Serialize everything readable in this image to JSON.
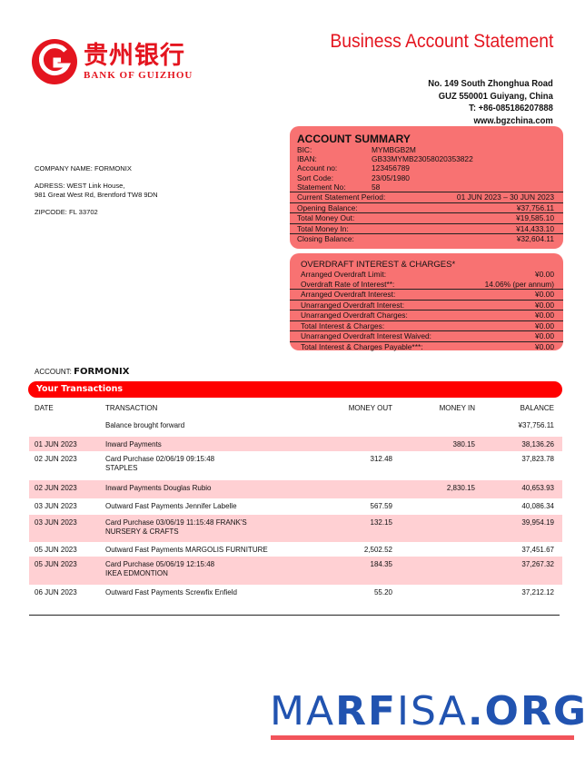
{
  "header": {
    "logo_cn": "贵州银行",
    "logo_en": "BANK OF GUIZHOU",
    "title": "Business Account Statement",
    "address": [
      "No. 149 South Zhonghua Road",
      "GUZ 550001 Guiyang, China",
      "T: +86-085186207888",
      "www.bgzchina.com"
    ]
  },
  "summary": {
    "title": "ACCOUNT SUMMARY",
    "details": [
      {
        "k": "BIC:",
        "v": "MYMBGB2M"
      },
      {
        "k": "IBAN:",
        "v": "GB33MYMB23058020353822"
      },
      {
        "k": "Account no:",
        "v": "123456789"
      },
      {
        "k": "Sort Code:",
        "v": "23/05/1980"
      },
      {
        "k": "Statement No:",
        "v": "58"
      }
    ],
    "lines": [
      {
        "k": "Current Statement Period:",
        "v": "01 JUN 2023 – 30 JUN 2023"
      },
      {
        "k": "Opening Balance:",
        "v": "¥37,756.11"
      },
      {
        "k": "Total Money Out:",
        "v": "¥19,585.10"
      },
      {
        "k": "Total Money In:",
        "v": "¥14,433.10"
      },
      {
        "k": "Closing Balance:",
        "v": "¥32,604.11"
      }
    ]
  },
  "overdraft": {
    "title": "OVERDRAFT INTEREST & CHARGES*",
    "top": [
      {
        "k": "Arranged Overdraft Limit:",
        "v": "¥0.00"
      },
      {
        "k": "Overdraft Rate of Interest**:",
        "v": "14.06% (per annum)"
      }
    ],
    "lines": [
      {
        "k": "Arranged Overdraft Interest:",
        "v": "¥0.00"
      },
      {
        "k": "Unarranged Overdraft Interest:",
        "v": "¥0.00"
      },
      {
        "k": "Unarranged Overdraft Charges:",
        "v": "¥0.00"
      },
      {
        "k": "Total Interest & Charges:",
        "v": "¥0.00"
      },
      {
        "k": "Unarranged Overdraft Interest Waived:",
        "v": "¥0.00"
      },
      {
        "k": "Total Interest & Charges Payable***:",
        "v": "¥0.00"
      }
    ]
  },
  "company": {
    "name": "COMPANY NAME: FORMONIX",
    "address1": "ADRESS: WEST Link House,",
    "address2": "981 Great West Rd, Brentford TW8 9DN",
    "zip": "ZIPCODE: FL 33702"
  },
  "account": {
    "label": "ACCOUNT:",
    "name": "FORMONIX"
  },
  "transactions": {
    "title": "Your Transactions",
    "headers": [
      "DATE",
      "TRANSACTION",
      "MONEY OUT",
      "MONEY IN",
      "BALANCE"
    ],
    "rows": [
      {
        "date": "",
        "desc": "Balance brought forward",
        "desc2": "",
        "out": "",
        "in": "",
        "bal": "¥37,756.11",
        "pink": false
      },
      {
        "date": "01 JUN 2023",
        "desc": "Inward Payments",
        "desc2": "",
        "out": "",
        "in": "380.15",
        "bal": "38,136.26",
        "pink": true
      },
      {
        "date": "02 JUN 2023",
        "desc": "Card Purchase 02/06/19 09:15:48",
        "desc2": "STAPLES",
        "out": "312.48",
        "in": "",
        "bal": "37,823.78",
        "pink": false
      },
      {
        "date": "02 JUN 2023",
        "desc": "Inward Payments Douglas Rubio",
        "desc2": "",
        "out": "",
        "in": "2,830.15",
        "bal": "40,653.93",
        "pink": true
      },
      {
        "date": "03 JUN 2023",
        "desc": "Outward Fast Payments Jennifer Labelle",
        "desc2": "",
        "out": "567.59",
        "in": "",
        "bal": "40,086.34",
        "pink": false
      },
      {
        "date": "03 JUN 2023",
        "desc": "Card Purchase 03/06/19 11:15:48 FRANK'S",
        "desc2": "NURSERY & CRAFTS",
        "out": "132.15",
        "in": "",
        "bal": "39,954.19",
        "pink": true
      },
      {
        "date": "05 JUN 2023",
        "desc": "Outward Fast Payments MARGOLIS FURNITURE",
        "desc2": "",
        "out": "2,502.52",
        "in": "",
        "bal": "37,451.67",
        "pink": false
      },
      {
        "date": "05 JUN 2023",
        "desc": "Card Purchase 05/06/19 12:15:48",
        "desc2": "IKEA EDMONTION",
        "out": "184.35",
        "in": "",
        "bal": "37,267.32",
        "pink": true
      },
      {
        "date": "06 JUN 2023",
        "desc": "Outward Fast Payments Screwfix Enfield",
        "desc2": "",
        "out": "55.20",
        "in": "",
        "bal": "37,212.12",
        "pink": false
      }
    ]
  },
  "watermark": "MARFISA.ORG",
  "colors": {
    "brand_red": "#e4151f",
    "band_red": "#ff0000",
    "box": "#f87272",
    "row_pink": "#ffd0d3",
    "watermark": "#2153b0"
  }
}
